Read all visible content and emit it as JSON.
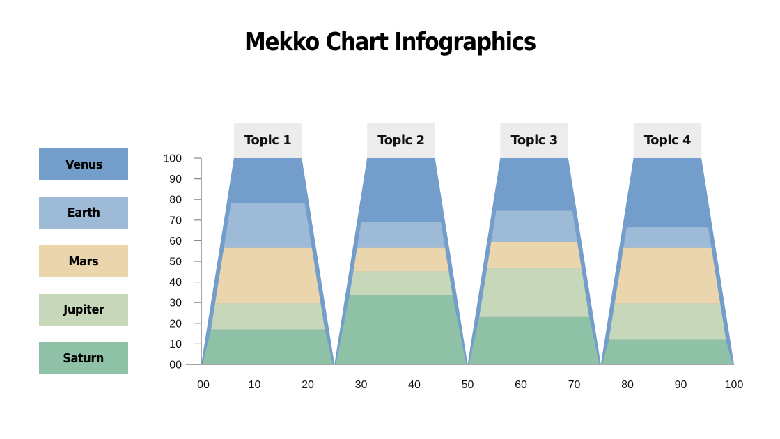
{
  "title": "Mekko Chart Infographics",
  "legend": [
    {
      "label": "Venus",
      "color": "#739dca"
    },
    {
      "label": "Earth",
      "color": "#9dbad6"
    },
    {
      "label": "Mars",
      "color": "#ead5ad"
    },
    {
      "label": "Jupiter",
      "color": "#c7d7b9"
    },
    {
      "label": "Saturn",
      "color": "#8fc1a7"
    }
  ],
  "chart_data": {
    "type": "bar",
    "title": "Mekko Chart Infographics",
    "categories": [
      "Topic 1",
      "Topic 2",
      "Topic 3",
      "Topic 4"
    ],
    "series": [
      {
        "name": "Saturn",
        "color": "#8fc1a7",
        "values": [
          17,
          33.5,
          23,
          12
        ]
      },
      {
        "name": "Jupiter",
        "color": "#c7d7b9",
        "values": [
          12.5,
          11.5,
          23.5,
          17.5
        ]
      },
      {
        "name": "Mars",
        "color": "#ead5ad",
        "values": [
          27,
          11.5,
          13,
          27
        ]
      },
      {
        "name": "Earth",
        "color": "#9dbad6",
        "values": [
          21.5,
          12.5,
          15,
          10
        ]
      },
      {
        "name": "Venus",
        "color": "#739dca",
        "values": [
          22,
          31,
          25.5,
          33.5
        ]
      }
    ],
    "cumulative_boundaries": {
      "Topic 1": [
        0,
        17,
        29.5,
        56.5,
        78,
        100
      ],
      "Topic 2": [
        0,
        33.5,
        45,
        56.5,
        69,
        100
      ],
      "Topic 3": [
        0,
        23,
        46.5,
        59.5,
        74.5,
        100
      ],
      "Topic 4": [
        0,
        12,
        29.5,
        56.5,
        66.5,
        100
      ]
    },
    "x_ranges": [
      [
        0,
        25
      ],
      [
        25,
        50
      ],
      [
        50,
        75
      ],
      [
        75,
        100
      ]
    ],
    "yticks": [
      "00",
      "10",
      "20",
      "30",
      "40",
      "50",
      "60",
      "70",
      "80",
      "90",
      "100"
    ],
    "xticks": [
      "00",
      "10",
      "20",
      "30",
      "40",
      "50",
      "60",
      "70",
      "80",
      "90",
      "100"
    ],
    "ylim": [
      0,
      100
    ],
    "xlim": [
      0,
      100
    ],
    "xlabel": "",
    "ylabel": "",
    "grid": false,
    "legend_position": "left",
    "stacking": "stacked, 100% (mekko)"
  }
}
